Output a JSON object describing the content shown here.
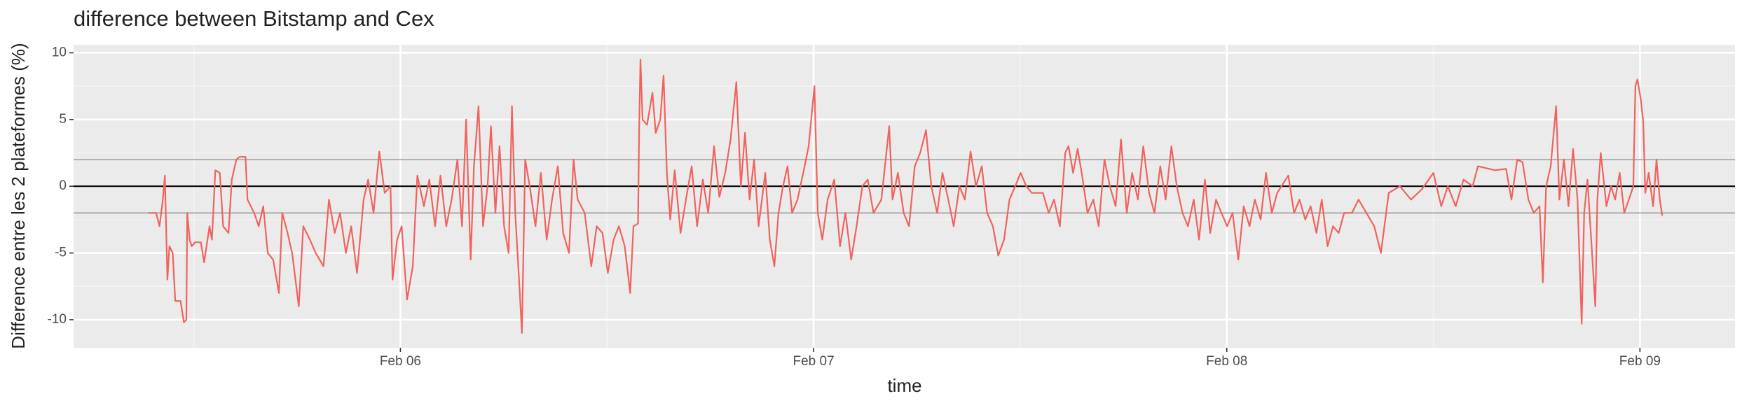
{
  "chart_data": {
    "type": "line",
    "title": "difference between Bitstamp and Cex",
    "x_label": "time",
    "y_label": "Difference entre les 2 plateformes (%)",
    "color": "#f0635e",
    "grid": true,
    "xlim": [
      5.209,
      9.23
    ],
    "ylim": [
      -12.1,
      10.6
    ],
    "xticks": [
      {
        "value": 6,
        "label": "Feb 06"
      },
      {
        "value": 7,
        "label": "Feb 07"
      },
      {
        "value": 8,
        "label": "Feb 08"
      },
      {
        "value": 9,
        "label": "Feb 09"
      }
    ],
    "yticks": [
      -10,
      -5,
      0,
      5,
      10
    ],
    "x_minor": [
      5.5,
      6.5,
      7.5,
      8.5
    ],
    "y_minor": [
      -7.5,
      -2.5,
      2.5,
      7.5
    ],
    "hlines": [
      {
        "value": 0,
        "color": "#000000"
      },
      {
        "value": 2,
        "color": "#b3b3b3"
      },
      {
        "value": -2,
        "color": "#b3b3b3"
      }
    ],
    "x": [
      5.39,
      5.409,
      5.417,
      5.425,
      5.43,
      5.436,
      5.441,
      5.449,
      5.455,
      5.468,
      5.476,
      5.482,
      5.484,
      5.49,
      5.495,
      5.503,
      5.517,
      5.525,
      5.538,
      5.544,
      5.552,
      5.563,
      5.571,
      5.584,
      5.592,
      5.603,
      5.611,
      5.625,
      5.63,
      5.646,
      5.657,
      5.668,
      5.679,
      5.692,
      5.706,
      5.714,
      5.727,
      5.738,
      5.754,
      5.765,
      5.781,
      5.795,
      5.814,
      5.827,
      5.841,
      5.854,
      5.868,
      5.881,
      5.895,
      5.911,
      5.922,
      5.935,
      5.949,
      5.962,
      5.976,
      5.981,
      5.992,
      6.003,
      6.016,
      6.03,
      6.041,
      6.057,
      6.07,
      6.084,
      6.097,
      6.111,
      6.124,
      6.138,
      6.149,
      6.159,
      6.17,
      6.178,
      6.189,
      6.2,
      6.211,
      6.219,
      6.23,
      6.24,
      6.251,
      6.262,
      6.27,
      6.278,
      6.289,
      6.294,
      6.302,
      6.313,
      6.327,
      6.34,
      6.354,
      6.367,
      6.381,
      6.394,
      6.408,
      6.419,
      6.429,
      6.446,
      6.462,
      6.475,
      6.489,
      6.502,
      6.516,
      6.529,
      6.543,
      6.556,
      6.564,
      6.575,
      6.578,
      6.581,
      6.586,
      6.597,
      6.61,
      6.618,
      6.629,
      6.637,
      6.645,
      6.653,
      6.664,
      6.678,
      6.691,
      6.705,
      6.718,
      6.732,
      6.745,
      6.759,
      6.772,
      6.786,
      6.799,
      6.813,
      6.824,
      6.834,
      6.845,
      6.856,
      6.867,
      6.883,
      6.894,
      6.905,
      6.915,
      6.926,
      6.937,
      6.948,
      6.961,
      6.975,
      6.988,
      7.002,
      7.01,
      7.021,
      7.034,
      7.05,
      7.064,
      7.077,
      7.091,
      7.104,
      7.118,
      7.131,
      7.145,
      7.164,
      7.183,
      7.191,
      7.204,
      7.218,
      7.231,
      7.245,
      7.258,
      7.272,
      7.285,
      7.299,
      7.312,
      7.326,
      7.339,
      7.353,
      7.366,
      7.38,
      7.393,
      7.407,
      7.42,
      7.434,
      7.447,
      7.461,
      7.474,
      7.488,
      7.501,
      7.515,
      7.528,
      7.555,
      7.569,
      7.582,
      7.596,
      7.609,
      7.617,
      7.628,
      7.639,
      7.65,
      7.663,
      7.677,
      7.69,
      7.704,
      7.717,
      7.731,
      7.744,
      7.758,
      7.771,
      7.785,
      7.798,
      7.812,
      7.825,
      7.839,
      7.852,
      7.866,
      7.879,
      7.893,
      7.906,
      7.92,
      7.933,
      7.947,
      7.96,
      7.974,
      7.987,
      8.001,
      8.014,
      8.028,
      8.041,
      8.055,
      8.068,
      8.082,
      8.095,
      8.109,
      8.122,
      8.149,
      8.163,
      8.176,
      8.19,
      8.203,
      8.217,
      8.23,
      8.244,
      8.257,
      8.271,
      8.284,
      8.303,
      8.319,
      8.338,
      8.357,
      8.373,
      8.392,
      8.419,
      8.446,
      8.473,
      8.5,
      8.519,
      8.535,
      8.554,
      8.573,
      8.595,
      8.608,
      8.649,
      8.676,
      8.689,
      8.703,
      8.716,
      8.73,
      8.743,
      8.757,
      8.765,
      8.773,
      8.784,
      8.797,
      8.805,
      8.816,
      8.827,
      8.838,
      8.849,
      8.859,
      8.865,
      8.873,
      8.884,
      8.892,
      8.897,
      8.905,
      8.919,
      8.93,
      8.94,
      8.951,
      8.962,
      8.973,
      8.984,
      8.989,
      8.994,
      9.002,
      9.008,
      9.013,
      9.021,
      9.032,
      9.04,
      9.048,
      9.054
    ],
    "values": [
      -2,
      -2,
      -3,
      -1,
      0.8,
      -7,
      -4.5,
      -5,
      -8.6,
      -8.6,
      -10.2,
      -10,
      -2,
      -4,
      -4.5,
      -4.2,
      -4.2,
      -5.7,
      -3,
      -4,
      1.2,
      1,
      -3,
      -3.5,
      0.5,
      2,
      2.2,
      2.2,
      -1,
      -2,
      -3,
      -1.5,
      -5,
      -5.5,
      -8,
      -2,
      -3.5,
      -5,
      -9,
      -3,
      -4,
      -5,
      -6,
      -1,
      -3.5,
      -2,
      -5,
      -3,
      -6.5,
      -1,
      0.5,
      -2,
      2.6,
      -0.5,
      0,
      -7,
      -4,
      -3,
      -8.5,
      -6,
      0.8,
      -1.5,
      0.5,
      -3,
      0.8,
      -3,
      -1,
      2,
      -3,
      5,
      -5.5,
      1.5,
      6,
      -3,
      0,
      4.5,
      -2,
      3,
      -3,
      -5,
      6,
      -2,
      -8,
      -11,
      2,
      0,
      -3,
      1,
      -4,
      -1,
      1.5,
      -3.5,
      -5,
      2,
      -1,
      -2,
      -6,
      -3,
      -3.5,
      -6.5,
      -4,
      -3,
      -4.5,
      -8,
      -3,
      -2.8,
      4.5,
      9.5,
      5,
      4.6,
      7,
      4,
      5,
      8.3,
      1,
      -2.5,
      1.2,
      -3.5,
      -1,
      1.5,
      -3,
      0.5,
      -2,
      3,
      -0.8,
      1,
      3.5,
      7.8,
      0,
      4,
      -1,
      2,
      -3,
      1,
      -4,
      -6,
      -2,
      0,
      1.5,
      -2,
      -1,
      1,
      3,
      7.5,
      -2,
      -4,
      -1,
      0.5,
      -4.5,
      -2,
      -5.5,
      -3,
      0,
      0.5,
      -2,
      -1,
      4.5,
      -1,
      1,
      -2,
      -3,
      1.5,
      2.5,
      4.2,
      0,
      -2,
      1,
      -1,
      -3,
      0,
      -1,
      2.6,
      0,
      1.5,
      -2,
      -3,
      -5.2,
      -4,
      -1,
      0,
      1,
      0,
      -0.5,
      -0.5,
      -2,
      -1,
      -3,
      2.5,
      3,
      1,
      2.8,
      0.8,
      -2,
      -1,
      -3,
      2,
      0,
      -1.5,
      3.5,
      -2,
      1,
      -1,
      3,
      -0.5,
      -2,
      1.5,
      -1,
      3,
      0,
      -2,
      -3,
      -1,
      -4,
      0.5,
      -3.5,
      -1,
      -2,
      -3,
      -2,
      -5.5,
      -1.5,
      -3,
      -1,
      -2.5,
      1,
      -2,
      -0.5,
      0.8,
      -2,
      -1,
      -2.5,
      -1.5,
      -3.5,
      -1,
      -4.5,
      -3,
      -3.5,
      -2,
      -2,
      -1,
      -2,
      -3,
      -5,
      -0.5,
      0,
      -1,
      -0.2,
      1,
      -1.5,
      0,
      -1.5,
      0.5,
      0,
      1.5,
      1.2,
      1.3,
      -1,
      2,
      1.8,
      -1,
      -2,
      -1.5,
      -7.2,
      0,
      1.5,
      6,
      -1,
      2,
      -1.5,
      2.8,
      -1,
      -10.3,
      -2,
      0.5,
      -5,
      -9,
      -1,
      2.5,
      -1.5,
      0,
      -1,
      1,
      -2,
      -1,
      0,
      7.5,
      8,
      6.5,
      4.8,
      -0.5,
      1,
      -1.5,
      2,
      -1,
      -2.2
    ]
  }
}
